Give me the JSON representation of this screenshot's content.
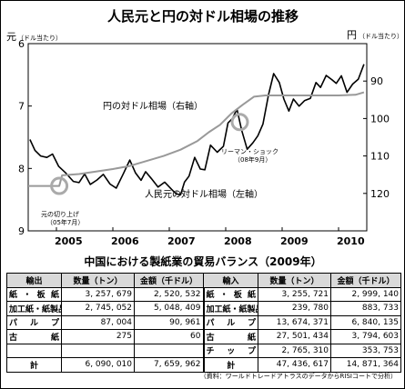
{
  "title": "人民元と円の対ドル相場の推移",
  "left_axis_unit": "元",
  "left_axis_unit_sub": "（ドル当たり）",
  "right_axis_unit": "円",
  "right_axis_unit_sub": "（ドル当たり）",
  "chart_data": {
    "type": "line",
    "title": "人民元と円の対ドル相場の推移",
    "x_range": [
      2004.5,
      2010.5
    ],
    "x_tick_labels": [
      "2005",
      "2006",
      "2007",
      "2008",
      "2009",
      "2010"
    ],
    "left_axis": {
      "label": "元（ドル当たり）",
      "range": [
        9,
        6
      ],
      "ticks": [
        "6",
        "7",
        "8",
        "9"
      ]
    },
    "right_axis": {
      "label": "円（ドル当たり）",
      "range": [
        80,
        130
      ],
      "inverted": true,
      "ticks": [
        "90",
        "100",
        "110",
        "120"
      ]
    },
    "series": [
      {
        "name": "円の対ドル相場（右軸）",
        "axis": "right",
        "color": "#000000",
        "points": [
          [
            2004.53,
            105.6
          ],
          [
            2004.62,
            108.5
          ],
          [
            2004.72,
            110.0
          ],
          [
            2004.83,
            110.4
          ],
          [
            2004.93,
            109.5
          ],
          [
            2005.04,
            112.8
          ],
          [
            2005.17,
            114.6
          ],
          [
            2005.3,
            116.8
          ],
          [
            2005.4,
            117.1
          ],
          [
            2005.5,
            114.8
          ],
          [
            2005.6,
            117.6
          ],
          [
            2005.72,
            116.4
          ],
          [
            2005.83,
            114.9
          ],
          [
            2005.95,
            117.5
          ],
          [
            2006.06,
            118.6
          ],
          [
            2006.18,
            114.9
          ],
          [
            2006.3,
            111.1
          ],
          [
            2006.4,
            114.5
          ],
          [
            2006.5,
            116.5
          ],
          [
            2006.58,
            114.2
          ],
          [
            2006.68,
            116.0
          ],
          [
            2006.8,
            118.3
          ],
          [
            2006.92,
            117.0
          ],
          [
            2007.04,
            118.9
          ],
          [
            2007.12,
            120.1
          ],
          [
            2007.2,
            120.4
          ],
          [
            2007.27,
            117.0
          ],
          [
            2007.35,
            115.4
          ],
          [
            2007.45,
            110.4
          ],
          [
            2007.55,
            113.5
          ],
          [
            2007.63,
            113.7
          ],
          [
            2007.73,
            107.1
          ],
          [
            2007.85,
            109.0
          ],
          [
            2007.96,
            107.4
          ],
          [
            2008.04,
            101.2
          ],
          [
            2008.12,
            100.0
          ],
          [
            2008.2,
            97.5
          ],
          [
            2008.28,
            103.0
          ],
          [
            2008.38,
            108.2
          ],
          [
            2008.48,
            106.5
          ],
          [
            2008.57,
            104.6
          ],
          [
            2008.66,
            101.5
          ],
          [
            2008.76,
            93.6
          ],
          [
            2008.85,
            88.0
          ],
          [
            2008.95,
            90.4
          ],
          [
            2009.03,
            94.8
          ],
          [
            2009.12,
            98.0
          ],
          [
            2009.2,
            94.8
          ],
          [
            2009.3,
            96.7
          ],
          [
            2009.4,
            95.2
          ],
          [
            2009.5,
            94.6
          ],
          [
            2009.6,
            90.4
          ],
          [
            2009.68,
            91.7
          ],
          [
            2009.78,
            88.5
          ],
          [
            2009.88,
            89.6
          ],
          [
            2009.96,
            90.6
          ],
          [
            2010.05,
            88.6
          ],
          [
            2010.15,
            93.0
          ],
          [
            2010.25,
            90.8
          ],
          [
            2010.35,
            89.5
          ],
          [
            2010.45,
            85.5
          ]
        ]
      },
      {
        "name": "人民元の対ドル相場（左軸）",
        "axis": "left",
        "color": "#999999",
        "points": [
          [
            2004.5,
            8.28
          ],
          [
            2005.05,
            8.28
          ],
          [
            2005.1,
            8.11
          ],
          [
            2005.4,
            8.09
          ],
          [
            2005.7,
            8.05
          ],
          [
            2006.0,
            8.01
          ],
          [
            2006.3,
            7.96
          ],
          [
            2006.6,
            7.88
          ],
          [
            2006.9,
            7.8
          ],
          [
            2007.2,
            7.7
          ],
          [
            2007.5,
            7.56
          ],
          [
            2007.7,
            7.42
          ],
          [
            2007.9,
            7.3
          ],
          [
            2008.1,
            7.12
          ],
          [
            2008.3,
            6.98
          ],
          [
            2008.5,
            6.85
          ],
          [
            2008.7,
            6.83
          ],
          [
            2009.0,
            6.83
          ],
          [
            2009.5,
            6.83
          ],
          [
            2010.0,
            6.83
          ],
          [
            2010.3,
            6.82
          ],
          [
            2010.45,
            6.78
          ]
        ]
      }
    ],
    "annotations": [
      {
        "text": "円の対ドル相場（右軸）"
      },
      {
        "text": "人民元の対ドル相場（左軸）"
      },
      {
        "text": "リーマン・ショック",
        "subtext": "（08年9月）",
        "x": 2008.25,
        "series": "円の対ドル相場（右軸）"
      },
      {
        "text": "元の切り上げ",
        "subtext": "（05年7月）",
        "x": 2005.05,
        "series": "人民元の対ドル相場（左軸）"
      }
    ],
    "grid": false,
    "legend": "inline"
  },
  "table": {
    "title": "中国における製紙業の貿易バランス（2009年）",
    "headers": [
      "輸出",
      "数量（トン）",
      "金額（千ドル）",
      "輸入",
      "数量（トン）",
      "金額（千ドル）"
    ],
    "rows": [
      [
        "紙・板紙",
        "3, 257, 679",
        "2, 520, 532",
        "紙・板紙",
        "3, 255, 721",
        "2, 999, 140"
      ],
      [
        "加工紙・紙製品",
        "2, 745, 052",
        "5, 048, 409",
        "加工紙・紙製品",
        "239, 780",
        "883, 733"
      ],
      [
        "パルプ",
        "87, 004",
        "90, 961",
        "パルプ",
        "13, 674, 371",
        "6, 840, 135"
      ],
      [
        "古紙",
        "275",
        "60",
        "古紙",
        "27, 501, 434",
        "3, 794, 603"
      ],
      [
        "",
        "",
        "",
        "チップ",
        "2, 765, 310",
        "353, 753"
      ],
      [
        "計",
        "6, 090, 010",
        "7, 659, 962",
        "計",
        "47, 436, 617",
        "14, 871, 364"
      ]
    ]
  },
  "source": "（資料：ワールドトレードアトラスのデータからRISIコートで分析）"
}
